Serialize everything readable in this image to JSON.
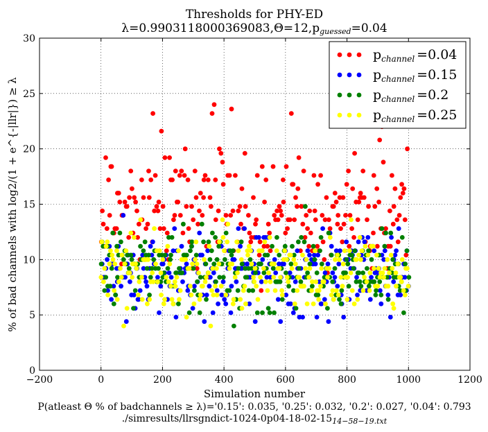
{
  "chart_data": {
    "type": "scatter",
    "title": "Thresholds for PHY-ED",
    "subtitle": "λ=0.9903118000369083,Θ=12,p",
    "subtitle_sub": "guessed",
    "subtitle_tail": "=0.04",
    "xlabel": "Simulation number",
    "ylabel": "% of bad channels with log2/(1 + e^{-|llr|}) ≥ λ",
    "caption_line1": "P(atleast Θ % of badchannels ≥ λ)='0.15': 0.035, '0.25': 0.032, '0.2': 0.027, '0.04': 0.793",
    "caption_line2": "./simresults/llrsgndict-1024-0p04-18-02-15",
    "caption_line2_sub": "14−58−19.txt",
    "xlim": [
      -200,
      1200
    ],
    "ylim": [
      0,
      30
    ],
    "xticks": [
      "−200",
      "0",
      "200",
      "400",
      "600",
      "800",
      "1000",
      "1200"
    ],
    "yticks": [
      "0",
      "5",
      "10",
      "15",
      "20",
      "25",
      "30"
    ],
    "grid": true,
    "legend_position": "top-right",
    "series": [
      {
        "name": "p",
        "name_sub": "channel",
        "name_tail": "=0.04",
        "color": "#ff0000",
        "y_center": 14.5,
        "y_spread": 2.8,
        "y_min": 7.0,
        "y_max": 27.0
      },
      {
        "name": "p",
        "name_sub": "channel",
        "name_tail": "=0.15",
        "color": "#0000ff",
        "y_center": 9.0,
        "y_spread": 1.9,
        "y_min": 4.5,
        "y_max": 15.2
      },
      {
        "name": "p",
        "name_sub": "channel",
        "name_tail": "=0.2",
        "color": "#008000",
        "y_center": 9.0,
        "y_spread": 1.8,
        "y_min": 4.0,
        "y_max": 15.0
      },
      {
        "name": "p",
        "name_sub": "channel",
        "name_tail": "=0.25",
        "color": "#ffff00",
        "y_center": 8.9,
        "y_spread": 1.8,
        "y_min": 3.6,
        "y_max": 15.3
      }
    ],
    "x_range": [
      0,
      1000
    ],
    "points_per_series": 260
  }
}
